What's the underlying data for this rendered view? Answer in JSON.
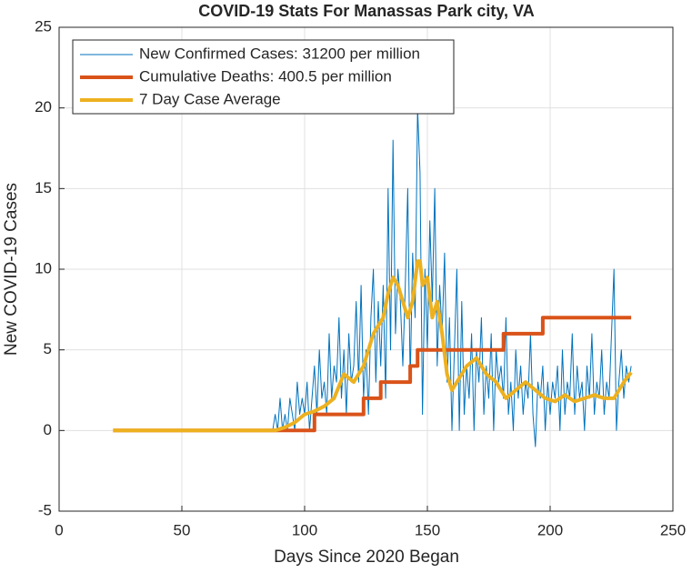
{
  "chart_data": {
    "type": "line",
    "title": "COVID-19 Stats For Manassas Park city, VA",
    "x_label": "Days Since 2020 Began",
    "y_label": "New COVID-19 Cases",
    "xlim": [
      0,
      250
    ],
    "xticks": [
      0,
      50,
      100,
      150,
      200,
      250
    ],
    "ylim": [
      -5,
      25
    ],
    "yticks": [
      -5,
      0,
      5,
      10,
      15,
      20,
      25
    ],
    "grid": true,
    "legend": "upper left",
    "series": [
      {
        "name": "New Confirmed Cases: 31200 per million",
        "color": "#0072bd",
        "width": 1,
        "x": [
          86,
          87,
          88,
          89,
          90,
          91,
          92,
          93,
          94,
          95,
          96,
          97,
          98,
          99,
          100,
          101,
          102,
          103,
          104,
          105,
          106,
          107,
          108,
          109,
          110,
          111,
          112,
          113,
          114,
          115,
          116,
          117,
          118,
          119,
          120,
          121,
          122,
          123,
          124,
          125,
          126,
          127,
          128,
          129,
          130,
          131,
          132,
          133,
          134,
          135,
          136,
          137,
          138,
          139,
          140,
          141,
          142,
          143,
          144,
          145,
          146,
          147,
          148,
          149,
          150,
          151,
          152,
          153,
          154,
          155,
          156,
          157,
          158,
          159,
          160,
          161,
          162,
          163,
          164,
          165,
          166,
          167,
          168,
          169,
          170,
          171,
          172,
          173,
          174,
          175,
          176,
          177,
          178,
          179,
          180,
          181,
          182,
          183,
          184,
          185,
          186,
          187,
          188,
          189,
          190,
          191,
          192,
          193,
          194,
          195,
          196,
          197,
          198,
          199,
          200,
          201,
          202,
          203,
          204,
          205,
          206,
          207,
          208,
          209,
          210,
          211,
          212,
          213,
          214,
          215,
          216,
          217,
          218,
          219,
          220,
          221,
          222,
          223,
          224,
          225,
          226,
          227,
          228,
          229,
          230,
          231,
          232,
          233
        ],
        "values": [
          0,
          0,
          1,
          0,
          2,
          0,
          1,
          0,
          2,
          1,
          0,
          3,
          1,
          2,
          1,
          3,
          0,
          2,
          4,
          1,
          5,
          2,
          3,
          1,
          6,
          2,
          4,
          3,
          7,
          2,
          5,
          1,
          6,
          3,
          4,
          8,
          3,
          9,
          2,
          5,
          1,
          7,
          10,
          3,
          8,
          4,
          9,
          2,
          15,
          5,
          18,
          6,
          10,
          8,
          4,
          9,
          15,
          3,
          11,
          7,
          20,
          16,
          1,
          10,
          5,
          13,
          8,
          15,
          4,
          9,
          6,
          11,
          3,
          7,
          0,
          5,
          10,
          0,
          8,
          1,
          4,
          2,
          6,
          0,
          5,
          3,
          7,
          1,
          4,
          2,
          6,
          0,
          5,
          3,
          4,
          2,
          7,
          1,
          3,
          0,
          5,
          2,
          4,
          1,
          3,
          2,
          6,
          1,
          -1,
          3,
          2,
          4,
          0,
          3,
          1,
          3,
          2,
          4,
          0,
          5,
          1,
          3,
          2,
          6,
          1,
          4,
          2,
          3,
          0,
          4,
          2,
          6,
          1,
          3,
          2,
          5,
          1,
          3,
          2,
          6,
          10,
          0,
          3,
          5,
          2,
          4,
          3,
          4
        ]
      },
      {
        "name": "Cumulative Deaths: 400.5 per million",
        "color": "#d95319",
        "width": 4,
        "x": [
          22,
          104,
          104,
          124,
          124,
          131,
          131,
          143,
          143,
          146,
          146,
          181,
          181,
          197,
          197,
          233
        ],
        "values": [
          0,
          0,
          1,
          1,
          2,
          2,
          3,
          3,
          4,
          4,
          5,
          5,
          6,
          6,
          7,
          7
        ]
      },
      {
        "name": "7 Day Case Average",
        "color": "#edb120",
        "width": 4,
        "x": [
          22,
          88,
          92,
          96,
          100,
          104,
          108,
          112,
          116,
          120,
          124,
          128,
          132,
          134,
          136,
          138,
          140,
          142,
          144,
          146,
          147,
          148,
          150,
          152,
          154,
          156,
          158,
          160,
          162,
          164,
          166,
          170,
          174,
          178,
          182,
          186,
          190,
          194,
          198,
          202,
          206,
          210,
          214,
          218,
          222,
          226,
          228,
          230,
          233
        ],
        "values": [
          0,
          0,
          0.2,
          0.5,
          1,
          1.2,
          1.5,
          2,
          3.5,
          3,
          4,
          6,
          7,
          8.5,
          9.5,
          9,
          8,
          7,
          8,
          10.5,
          10.5,
          9,
          9.5,
          7,
          8,
          6,
          3.5,
          2.5,
          3,
          3.5,
          4,
          4.5,
          3.5,
          3,
          2,
          2.5,
          3,
          2.5,
          2,
          1.8,
          2.2,
          1.8,
          2,
          2.2,
          2,
          2,
          2.5,
          3,
          3.6
        ]
      }
    ]
  }
}
